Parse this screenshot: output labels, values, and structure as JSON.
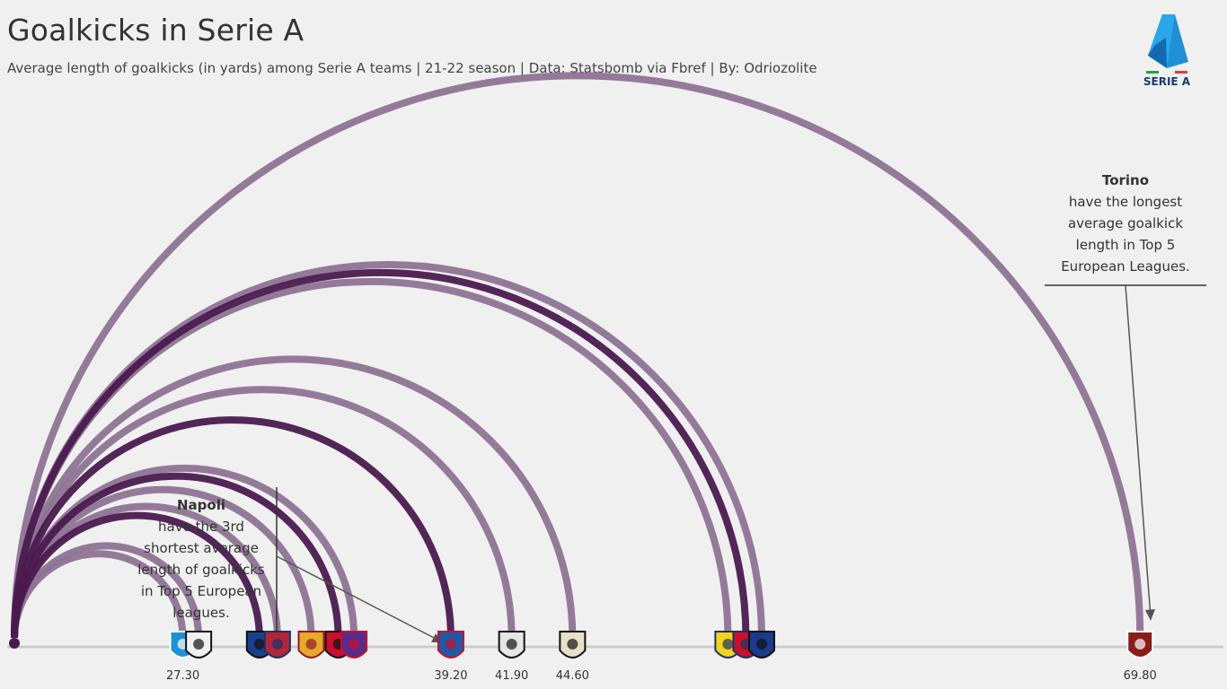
{
  "header": {
    "title": "Goalkicks in Serie A",
    "subtitle": "Average length of goalkicks (in yards) among Serie A teams | 21-22 season | Data: Statsbomb via Fbref | By: Odriozolite"
  },
  "logo": {
    "text": "SERIE A"
  },
  "annotations": {
    "torino": {
      "team": "Torino",
      "lines": [
        "have the longest",
        "average goalkick",
        "length in Top 5",
        "European Leagues."
      ]
    },
    "napoli": {
      "team": "Napoli",
      "lines": [
        "have the 3rd",
        "shortest average",
        "length of goalkicks",
        "in Top 5 European",
        "leagues."
      ]
    }
  },
  "colors": {
    "light_arc": "#8e7394",
    "dark_arc": "#4a1a4f",
    "baseline": "#cccccc",
    "background": "#f0f0f0"
  },
  "chart_data": {
    "type": "arc",
    "xlim": [
      19.5,
      73.5
    ],
    "teams": [
      {
        "name": "Napoli",
        "value": 27.3,
        "shade": "light",
        "labeled": true,
        "label": "27.30",
        "icon": "napoli-badge-icon"
      },
      {
        "name": "Juventus",
        "value": 28.0,
        "shade": "light",
        "labeled": false,
        "icon": "juventus-badge-icon"
      },
      {
        "name": "Inter",
        "value": 30.7,
        "shade": "dark",
        "labeled": false,
        "icon": "inter-badge-icon"
      },
      {
        "name": "Bologna",
        "value": 31.5,
        "shade": "light",
        "labeled": false,
        "icon": "bologna-badge-icon"
      },
      {
        "name": "Roma",
        "value": 33.0,
        "shade": "light",
        "labeled": false,
        "icon": "roma-badge-icon"
      },
      {
        "name": "Milan",
        "value": 34.2,
        "shade": "dark",
        "labeled": false,
        "icon": "milan-badge-icon"
      },
      {
        "name": "Fiorentina",
        "value": 34.9,
        "shade": "light",
        "labeled": false,
        "icon": "fiorentina-badge-icon"
      },
      {
        "name": "Empoli",
        "value": 39.2,
        "shade": "dark",
        "labeled": true,
        "label": "39.20",
        "icon": "empoli-badge-icon"
      },
      {
        "name": "Udinese",
        "value": 41.9,
        "shade": "light",
        "labeled": true,
        "label": "41.90",
        "icon": "udinese-badge-icon"
      },
      {
        "name": "Spezia",
        "value": 44.6,
        "shade": "light",
        "labeled": true,
        "label": "44.60",
        "icon": "spezia-badge-icon"
      },
      {
        "name": "Hellas Verona",
        "value": 51.5,
        "shade": "light",
        "labeled": false,
        "icon": "verona-badge-icon"
      },
      {
        "name": "Cagliari",
        "value": 52.3,
        "shade": "dark",
        "labeled": false,
        "icon": "cagliari-badge-icon"
      },
      {
        "name": "Atalanta",
        "value": 53.0,
        "shade": "light",
        "labeled": false,
        "icon": "atalanta-badge-icon"
      },
      {
        "name": "Torino",
        "value": 69.8,
        "shade": "light",
        "labeled": true,
        "label": "69.80",
        "icon": "torino-badge-icon"
      }
    ]
  }
}
